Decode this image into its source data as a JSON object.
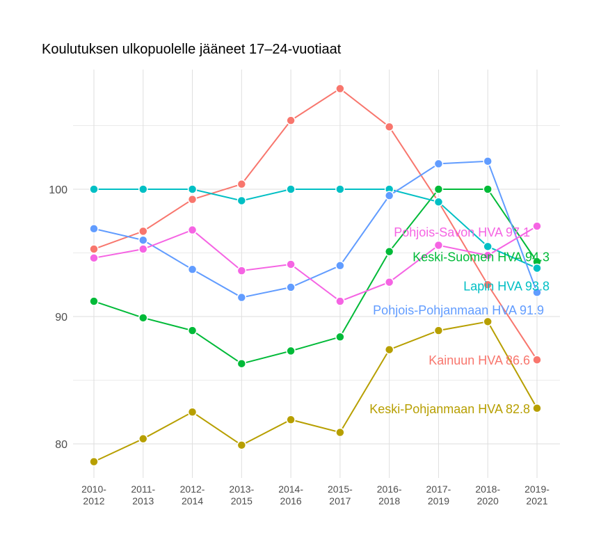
{
  "chart_data": {
    "type": "line",
    "title": "Koulutuksen ulkopuolelle jääneet 17–24-vuotiaat",
    "xlabel": "",
    "ylabel": "",
    "categories": [
      "2010-\n2012",
      "2011-\n2013",
      "2012-\n2014",
      "2013-\n2015",
      "2014-\n2016",
      "2015-\n2017",
      "2016-\n2018",
      "2017-\n2019",
      "2018-\n2020",
      "2019-\n2021"
    ],
    "yticks": [
      80,
      90,
      100
    ],
    "ylim": [
      77,
      108.5
    ],
    "grid": true,
    "series": [
      {
        "name": "Kainuun HVA",
        "label": "Kainuun HVA 86.6",
        "color": "#F8766D",
        "values": [
          95.3,
          96.7,
          99.2,
          100.4,
          105.4,
          107.9,
          104.9,
          99.0,
          92.5,
          86.6
        ]
      },
      {
        "name": "Keski-Pohjanmaan HVA",
        "label": "Keski-Pohjanmaan HVA 82.8",
        "color": "#B79F00",
        "values": [
          78.6,
          80.4,
          82.5,
          79.9,
          81.9,
          80.9,
          87.4,
          88.9,
          89.6,
          82.8
        ]
      },
      {
        "name": "Keski-Suomen HVA",
        "label": "Keski-Suomen HVA 94.3",
        "color": "#00BA38",
        "values": [
          91.2,
          89.9,
          88.9,
          86.3,
          87.3,
          88.4,
          95.1,
          100,
          100,
          94.3
        ]
      },
      {
        "name": "Lapin HVA",
        "label": "Lapin HVA 93.8",
        "color": "#00BFC4",
        "values": [
          100,
          100,
          100,
          99.1,
          100,
          100,
          100,
          99.0,
          95.5,
          93.8
        ]
      },
      {
        "name": "Pohjois-Pohjanmaan HVA",
        "label": "Pohjois-Pohjanmaan HVA 91.9",
        "color": "#619CFF",
        "values": [
          96.9,
          96.0,
          93.7,
          91.5,
          92.3,
          94.0,
          99.5,
          102.0,
          102.2,
          91.9
        ]
      },
      {
        "name": "Pohjois-Savon HVA",
        "label": "Pohjois-Savon HVA 97.1",
        "color": "#F564E3",
        "values": [
          94.6,
          95.3,
          96.8,
          93.6,
          94.1,
          91.2,
          92.7,
          95.6,
          94.8,
          97.1
        ]
      }
    ]
  }
}
